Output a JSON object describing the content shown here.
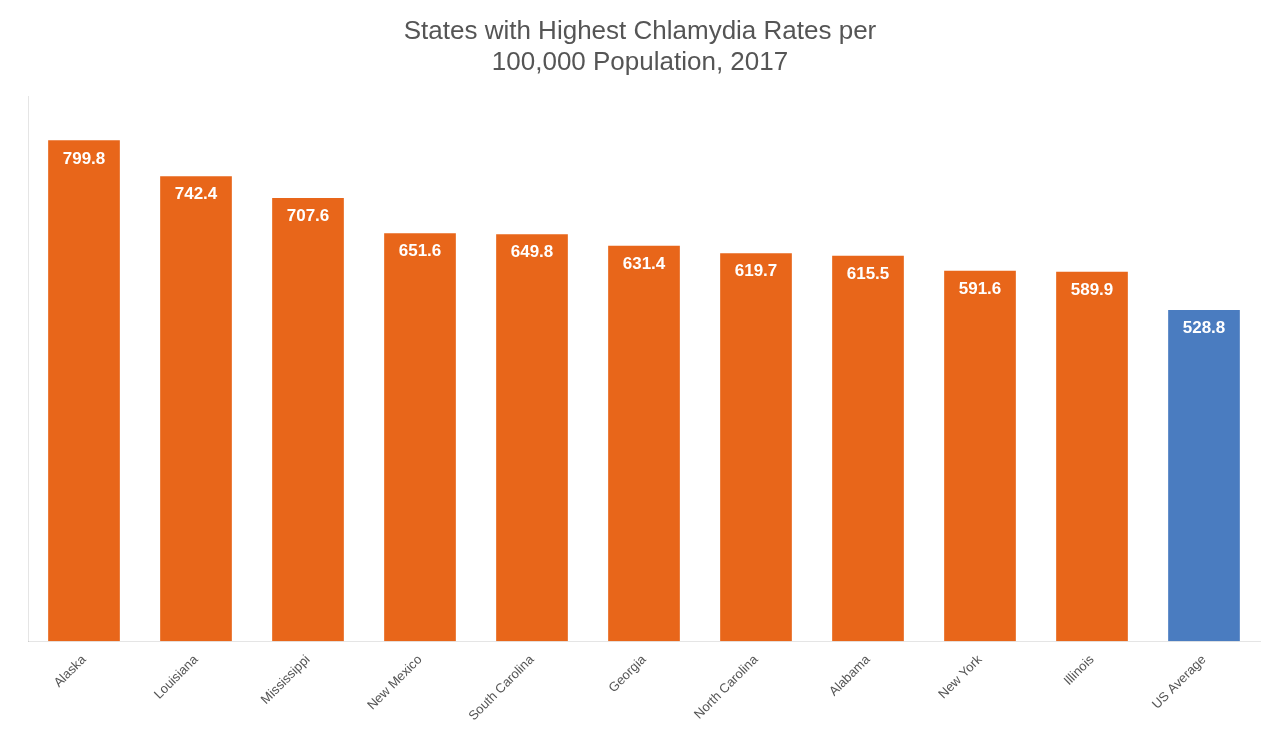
{
  "chart_data": {
    "type": "bar",
    "title": "States with Highest Chlamydia Rates per\n100,000 Population, 2017",
    "categories": [
      "Alaska",
      "Louisiana",
      "Mississippi",
      "New Mexico",
      "South Carolina",
      "Georgia",
      "North Carolina",
      "Alabama",
      "New York",
      "Illinois",
      "US Average"
    ],
    "values": [
      799.8,
      742.4,
      707.6,
      651.6,
      649.8,
      631.4,
      619.7,
      615.5,
      591.6,
      589.9,
      528.8
    ],
    "colors": [
      "#E8661A",
      "#E8661A",
      "#E8661A",
      "#E8661A",
      "#E8661A",
      "#E8661A",
      "#E8661A",
      "#E8661A",
      "#E8661A",
      "#E8661A",
      "#4A7CC0"
    ],
    "ylim": [
      0,
      870
    ],
    "grid": false,
    "data_labels": true,
    "tick_labels": "x"
  }
}
